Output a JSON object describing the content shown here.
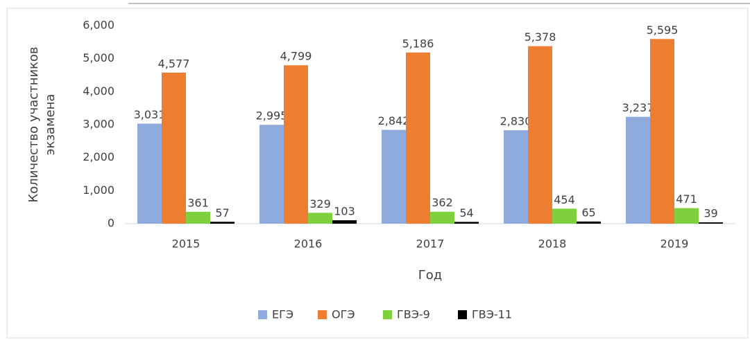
{
  "chart_data": {
    "type": "bar",
    "ylabel": "Количество участников экзамена",
    "xlabel": "Год",
    "categories": [
      "2015",
      "2016",
      "2017",
      "2018",
      "2019"
    ],
    "series": [
      {
        "name": "ЕГЭ",
        "color": "#8faadc",
        "values": [
          3031,
          2995,
          2842,
          2830,
          3237
        ],
        "value_labels": [
          "3,031",
          "2,995",
          "2,842",
          "2,830",
          "3,237"
        ]
      },
      {
        "name": "ОГЭ",
        "color": "#ed7d31",
        "values": [
          4577,
          4799,
          5186,
          5378,
          5595
        ],
        "value_labels": [
          "4,577",
          "4,799",
          "5,186",
          "5,378",
          "5,595"
        ]
      },
      {
        "name": "ГВЭ-9",
        "color": "#7ed13c",
        "values": [
          361,
          329,
          362,
          454,
          471
        ]
      },
      {
        "name": "ГВЭ-11",
        "color": "#000000",
        "values": [
          57,
          103,
          54,
          65,
          39
        ]
      }
    ],
    "ylim": [
      0,
      6000
    ],
    "yticks": [
      0,
      {
        "value": 1000,
        "label": "1,000"
      },
      {
        "value": 2000,
        "label": "2,000"
      },
      {
        "value": 3000,
        "label": "3,000"
      },
      {
        "value": 4000,
        "label": "4,000"
      },
      {
        "value": 5000,
        "label": "5,000"
      },
      {
        "value": 6000,
        "label": "6,000"
      }
    ],
    "legend": "bottom"
  }
}
